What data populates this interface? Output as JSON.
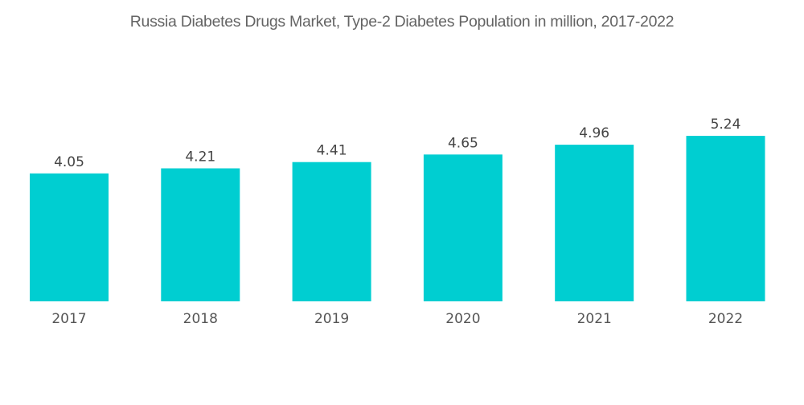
{
  "chart_data": {
    "type": "bar",
    "title": "Russia Diabetes Drugs Market, Type-2 Diabetes Population in million, 2017-2022",
    "categories": [
      "2017",
      "2018",
      "2019",
      "2020",
      "2021",
      "2022"
    ],
    "values": [
      4.05,
      4.21,
      4.41,
      4.65,
      4.96,
      5.24
    ],
    "data_labels": [
      "4.05",
      "4.21",
      "4.41",
      "4.65",
      "4.96",
      "5.24"
    ],
    "xlabel": "",
    "ylabel": "",
    "ylim": [
      0,
      5.24
    ],
    "grid": false,
    "legend": "none",
    "bar_color": "#00CED1"
  }
}
